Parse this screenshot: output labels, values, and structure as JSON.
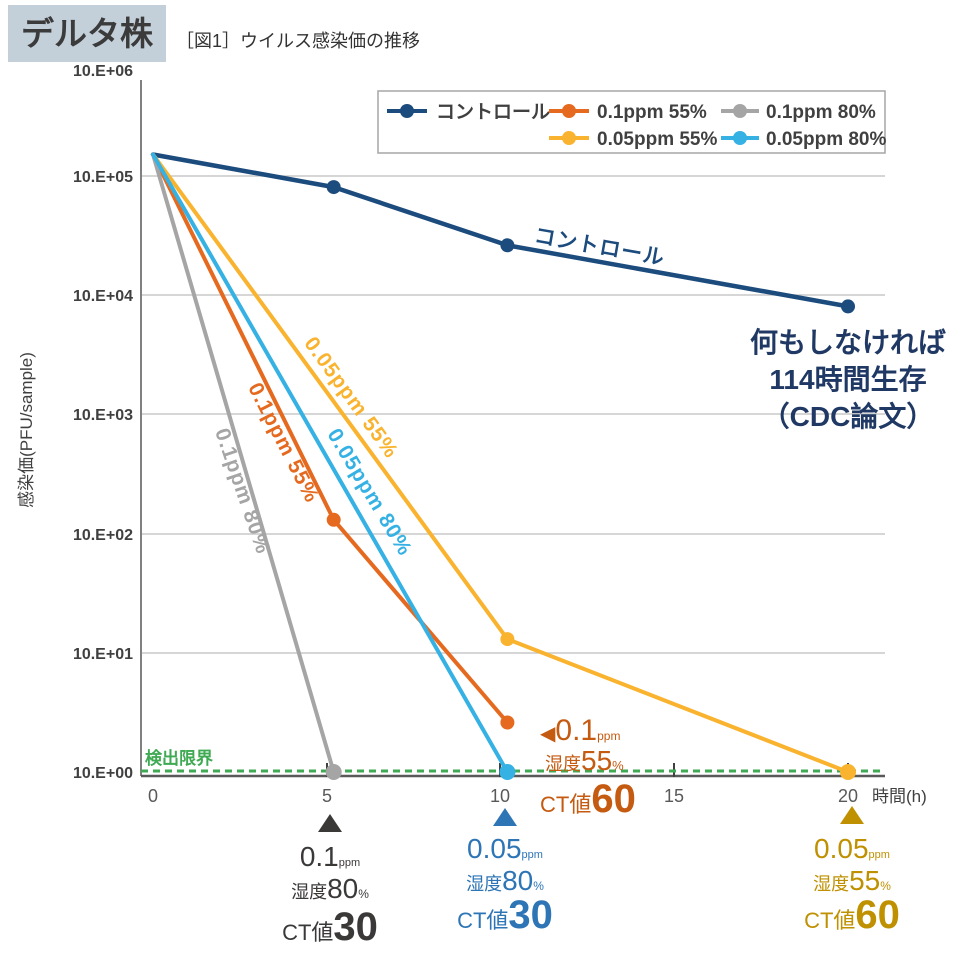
{
  "header": {
    "badge": "デルタ株",
    "caption": "［図1］ウイルス感染価の推移"
  },
  "axes": {
    "y_title": "感染価(PFU/sample)",
    "y_ticks": [
      "10.E+06",
      "10.E+05",
      "10.E+04",
      "10.E+03",
      "10.E+02",
      "10.E+01",
      "10.E+00"
    ],
    "x_ticks": [
      "0",
      "5",
      "10",
      "15",
      "20"
    ],
    "x_title": "時間(h)"
  },
  "legend": {
    "items": [
      {
        "label": "コントロール",
        "color": "#1C4B7D"
      },
      {
        "label": "0.1ppm 55%",
        "color": "#E56A1F"
      },
      {
        "label": "0.1ppm 80%",
        "color": "#A5A5A5"
      },
      {
        "label": "0.05ppm 55%",
        "color": "#F9B32F"
      },
      {
        "label": "0.05ppm 80%",
        "color": "#35B1E4"
      }
    ]
  },
  "detection_limit": {
    "label": "検出限界",
    "color": "#3FA953"
  },
  "line_labels": [
    {
      "text": "コントロール",
      "color": "#1C4B7D"
    },
    {
      "text": "0.1ppm 80%",
      "color": "#A5A5A5"
    },
    {
      "text": "0.1ppm 55%",
      "color": "#E56A1F"
    },
    {
      "text": "0.05ppm 80%",
      "color": "#35B1E4"
    },
    {
      "text": "0.05ppm 55%",
      "color": "#F9B32F"
    }
  ],
  "annotations": {
    "control_note": {
      "lines": [
        "何もしなければ",
        "114時間生存",
        "（CDC論文）"
      ],
      "color": "#1F3864"
    },
    "orange_note": {
      "arrow": "◀",
      "value": "0.1",
      "unit": "ppm",
      "humidity_label": "湿度",
      "humidity_value": "55",
      "humidity_unit": "%",
      "ct_label": "CT値",
      "ct_value": "60",
      "color": "#C55A11"
    }
  },
  "bottom_notes": [
    {
      "marker": "▲",
      "value": "0.1",
      "unit": "ppm",
      "humidity_label": "湿度",
      "humidity_value": "80",
      "humidity_unit": "%",
      "ct_label": "CT値",
      "ct_value": "30",
      "color": "#3B3838"
    },
    {
      "marker": "▲",
      "value": "0.05",
      "unit": "ppm",
      "humidity_label": "湿度",
      "humidity_value": "80",
      "humidity_unit": "%",
      "ct_label": "CT値",
      "ct_value": "30",
      "color": "#2E75B6"
    },
    {
      "marker": "▲",
      "value": "0.05",
      "unit": "ppm",
      "humidity_label": "湿度",
      "humidity_value": "55",
      "humidity_unit": "%",
      "ct_label": "CT値",
      "ct_value": "60",
      "color": "#BF9000"
    }
  ],
  "chart_data": {
    "type": "line",
    "title": "［図1］ウイルス感染価の推移",
    "xlabel": "時間(h)",
    "ylabel": "感染価(PFU/sample)",
    "y_scale": "log10",
    "ylim": [
      1,
      1000000
    ],
    "xlim": [
      0,
      21
    ],
    "x_tick_values": [
      0,
      5,
      10,
      15,
      20
    ],
    "grid": "horizontal",
    "legend_position": "top",
    "detection_limit_value": 1,
    "series": [
      {
        "name": "コントロール",
        "color": "#1C4B7D",
        "points": [
          [
            0,
            150000
          ],
          [
            5.2,
            80000
          ],
          [
            10.2,
            26000
          ],
          [
            20,
            8000
          ]
        ]
      },
      {
        "name": "0.1ppm 55%",
        "color": "#E56A1F",
        "points": [
          [
            0,
            150000
          ],
          [
            5.2,
            130
          ],
          [
            10.2,
            2.6
          ]
        ]
      },
      {
        "name": "0.1ppm 80%",
        "color": "#A5A5A5",
        "points": [
          [
            0,
            150000
          ],
          [
            5.2,
            1
          ]
        ]
      },
      {
        "name": "0.05ppm 55%",
        "color": "#F9B32F",
        "points": [
          [
            0,
            150000
          ],
          [
            10.2,
            13
          ],
          [
            20,
            1
          ]
        ]
      },
      {
        "name": "0.05ppm 80%",
        "color": "#35B1E4",
        "points": [
          [
            0,
            150000
          ],
          [
            10.2,
            1
          ]
        ]
      }
    ]
  }
}
